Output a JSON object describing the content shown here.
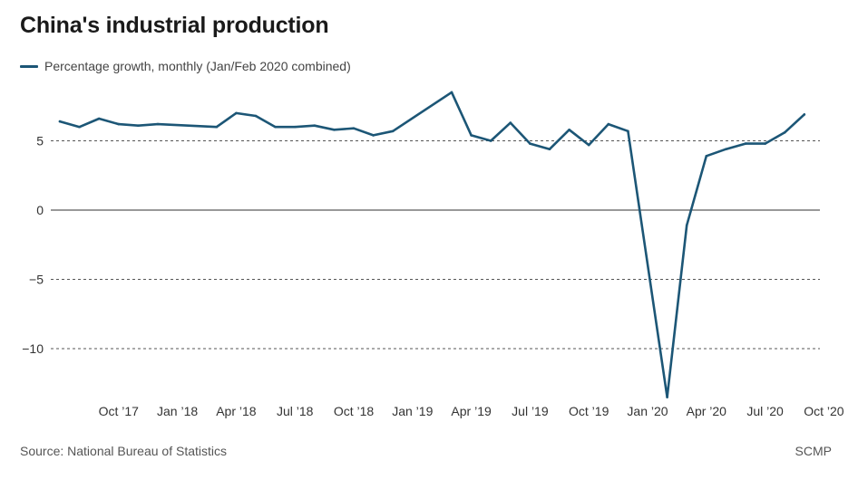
{
  "title": "China's industrial production",
  "colors": {
    "series": "#1c5676",
    "axis_text": "#333333",
    "grid": "#222222"
  },
  "chart_data": {
    "type": "line",
    "title": "China's industrial production",
    "xlabel": "",
    "ylabel": "",
    "ylim": [
      -14,
      9
    ],
    "yticks": [
      5,
      0,
      -5,
      -10
    ],
    "ytick_labels": [
      "5",
      "0",
      "−5",
      "−10"
    ],
    "grid": "horizontal dashed gridlines at 5, -5, -10; solid baseline at 0",
    "legend_position": "top-left",
    "x_tick_indices": [
      4,
      7,
      10,
      13,
      16,
      19,
      22,
      25,
      28,
      31,
      34,
      37,
      40
    ],
    "x_tick_labels": [
      "Oct ’17",
      "Jan ’18",
      "Apr ’18",
      "Jul ’18",
      "Oct ’18",
      "Jan ’19",
      "Apr ’19",
      "Jul ’19",
      "Oct ’19",
      "Jan ’20",
      "Apr ’20",
      "Jul ’20",
      "Oct ’20"
    ],
    "series": [
      {
        "name": "Percentage growth, monthly (Jan/Feb 2020 combined)",
        "color": "#1c5676",
        "points": [
          {
            "i": 1,
            "y": 6.4
          },
          {
            "i": 2,
            "y": 6.0
          },
          {
            "i": 3,
            "y": 6.6
          },
          {
            "i": 4,
            "y": 6.2
          },
          {
            "i": 5,
            "y": 6.1
          },
          {
            "i": 6,
            "y": 6.2
          },
          {
            "i": 9,
            "y": 6.0
          },
          {
            "i": 10,
            "y": 7.0
          },
          {
            "i": 11,
            "y": 6.8
          },
          {
            "i": 12,
            "y": 6.0
          },
          {
            "i": 13,
            "y": 6.0
          },
          {
            "i": 14,
            "y": 6.1
          },
          {
            "i": 15,
            "y": 5.8
          },
          {
            "i": 16,
            "y": 5.9
          },
          {
            "i": 17,
            "y": 5.4
          },
          {
            "i": 18,
            "y": 5.7
          },
          {
            "i": 21,
            "y": 8.5
          },
          {
            "i": 22,
            "y": 5.4
          },
          {
            "i": 23,
            "y": 5.0
          },
          {
            "i": 24,
            "y": 6.3
          },
          {
            "i": 25,
            "y": 4.8
          },
          {
            "i": 26,
            "y": 4.4
          },
          {
            "i": 27,
            "y": 5.8
          },
          {
            "i": 28,
            "y": 4.7
          },
          {
            "i": 29,
            "y": 6.2
          },
          {
            "i": 30,
            "y": 5.7
          },
          {
            "i": 32,
            "y": -13.5
          },
          {
            "i": 33,
            "y": -1.1
          },
          {
            "i": 34,
            "y": 3.9
          },
          {
            "i": 35,
            "y": 4.4
          },
          {
            "i": 36,
            "y": 4.8
          },
          {
            "i": 37,
            "y": 4.8
          },
          {
            "i": 38,
            "y": 5.6
          },
          {
            "i": 39,
            "y": 6.9
          }
        ]
      }
    ]
  },
  "footer": {
    "source": "Source: National Bureau of Statistics",
    "credit": "SCMP"
  }
}
